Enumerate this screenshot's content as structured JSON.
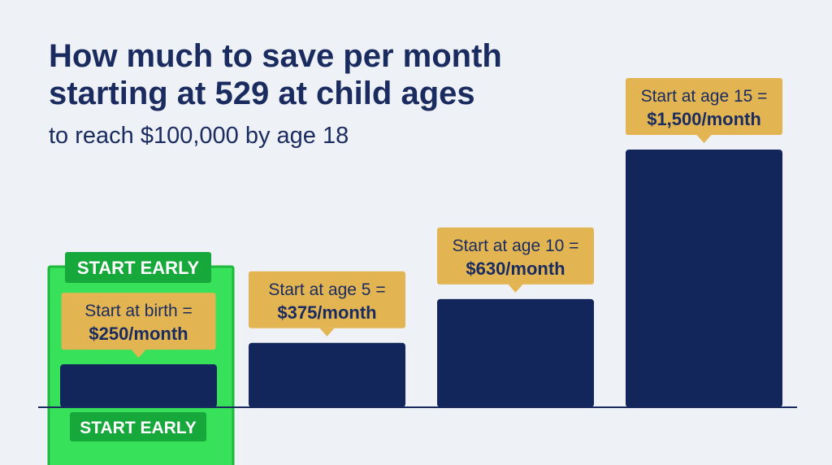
{
  "title": "How much to save per month starting at 529 at child ages",
  "subtitle": "to reach $100,000 by age 18",
  "colors": {
    "background": "#eef1f6",
    "bar": "#13265c",
    "callout": "#e3b552",
    "highlight": "#38e15a",
    "highlight_border": "#1fb83f",
    "badge": "#17a83b",
    "text": "#1a2b5f"
  },
  "highlight": {
    "badge_top": "START EARLY",
    "badge_bottom": "START EARLY"
  },
  "chart_data": {
    "type": "bar",
    "title": "How much to save per month starting at 529 at child ages",
    "subtitle": "to reach $100,000 by age 18",
    "categories": [
      "birth",
      "5",
      "10",
      "15"
    ],
    "values": [
      250,
      375,
      630,
      1500
    ],
    "unit": "$/month",
    "xlabel": "",
    "ylabel": "",
    "ylim": [
      0,
      1500
    ],
    "grid": false,
    "legend": "none",
    "labels": [
      {
        "line1": "Start at birth =",
        "line2": "$250/month"
      },
      {
        "line1": "Start at age 5 =",
        "line2": "$375/month"
      },
      {
        "line1": "Start at age 10 =",
        "line2": "$630/month"
      },
      {
        "line1": "Start at age 15 =",
        "line2": "$1,500/month"
      }
    ],
    "highlighted_index": 0
  }
}
